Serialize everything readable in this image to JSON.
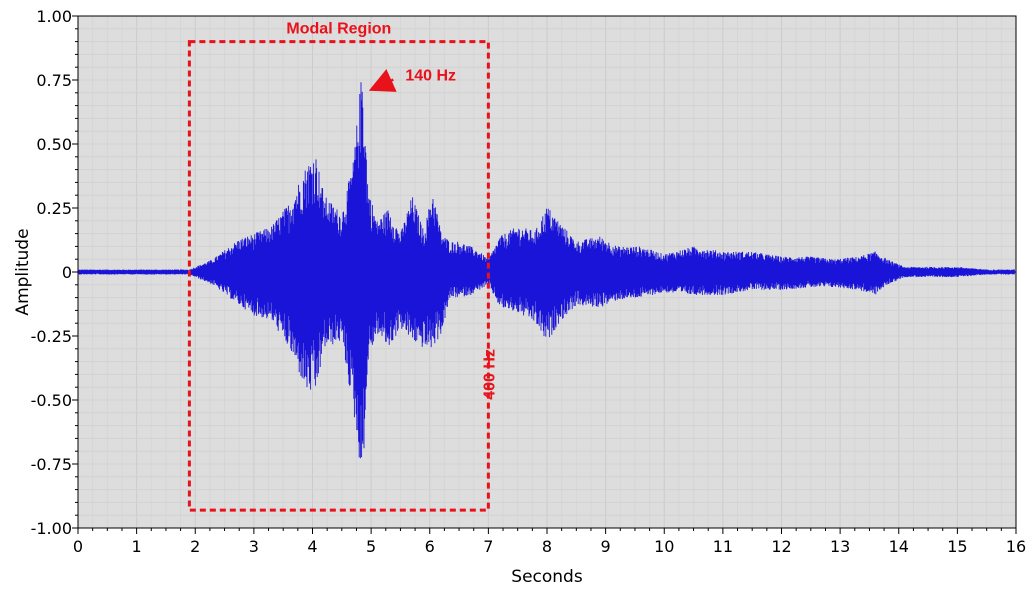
{
  "chart_data": {
    "type": "line",
    "title": "",
    "xlabel": "Seconds",
    "ylabel": "Amplitude",
    "xlim": [
      0,
      16
    ],
    "ylim": [
      -1.0,
      1.0
    ],
    "x_ticks": [
      0,
      1,
      2,
      3,
      4,
      5,
      6,
      7,
      8,
      9,
      10,
      11,
      12,
      13,
      14,
      15,
      16
    ],
    "x_tick_labels": [
      "0",
      "1",
      "2",
      "3",
      "4",
      "5",
      "6",
      "7",
      "8",
      "9",
      "10",
      "11",
      "12",
      "13",
      "14",
      "15",
      "16"
    ],
    "y_ticks": [
      1.0,
      0.75,
      0.5,
      0.25,
      0,
      -0.25,
      -0.5,
      -0.75,
      -1.0
    ],
    "y_tick_labels": [
      "1.00",
      "0.75",
      "0.50",
      "0.25",
      "0",
      "-0.25",
      "-0.50",
      "-0.75",
      "-1.00"
    ],
    "grid": true,
    "series": [
      {
        "color": "#1a14d8",
        "envelope": {
          "x": [
            0,
            1.0,
            1.9,
            2.3,
            2.75,
            3.0,
            3.3,
            3.6,
            3.9,
            4.05,
            4.2,
            4.5,
            4.7,
            4.85,
            4.95,
            5.1,
            5.3,
            5.5,
            5.7,
            5.9,
            6.05,
            6.2,
            6.35,
            6.5,
            6.7,
            6.85,
            7.0,
            7.2,
            7.5,
            7.8,
            8.0,
            8.2,
            8.5,
            8.9,
            9.2,
            9.6,
            10.0,
            10.5,
            11.0,
            11.5,
            12.0,
            12.5,
            12.9,
            13.3,
            13.6,
            13.8,
            14.1,
            14.5,
            15.0,
            15.5,
            16.0
          ],
          "upper": [
            0.01,
            0.01,
            0.01,
            0.05,
            0.13,
            0.15,
            0.18,
            0.27,
            0.42,
            0.47,
            0.3,
            0.23,
            0.44,
            0.81,
            0.33,
            0.2,
            0.25,
            0.15,
            0.3,
            0.16,
            0.32,
            0.15,
            0.12,
            0.12,
            0.1,
            0.08,
            0.05,
            0.14,
            0.18,
            0.16,
            0.26,
            0.2,
            0.12,
            0.14,
            0.1,
            0.1,
            0.07,
            0.1,
            0.08,
            0.08,
            0.06,
            0.06,
            0.05,
            0.06,
            0.08,
            0.05,
            0.02,
            0.02,
            0.02,
            0.01,
            0.01
          ],
          "lower": [
            -0.01,
            -0.01,
            -0.01,
            -0.05,
            -0.13,
            -0.17,
            -0.19,
            -0.3,
            -0.47,
            -0.48,
            -0.3,
            -0.27,
            -0.55,
            -0.83,
            -0.35,
            -0.24,
            -0.3,
            -0.22,
            -0.27,
            -0.3,
            -0.3,
            -0.24,
            -0.1,
            -0.1,
            -0.09,
            -0.07,
            -0.05,
            -0.14,
            -0.16,
            -0.2,
            -0.28,
            -0.2,
            -0.13,
            -0.14,
            -0.11,
            -0.1,
            -0.08,
            -0.09,
            -0.09,
            -0.07,
            -0.07,
            -0.06,
            -0.06,
            -0.07,
            -0.09,
            -0.05,
            -0.02,
            -0.02,
            -0.02,
            -0.01,
            -0.01
          ]
        }
      }
    ],
    "annotations": {
      "region_label": "Modal Region",
      "region_x": [
        1.9,
        7.0
      ],
      "region_y": [
        -0.93,
        0.9
      ],
      "peak_label": "140 Hz",
      "peak_x": 4.85,
      "peak_y": 0.81,
      "edge_label": "400 Hz",
      "color": "#e8121b"
    }
  }
}
